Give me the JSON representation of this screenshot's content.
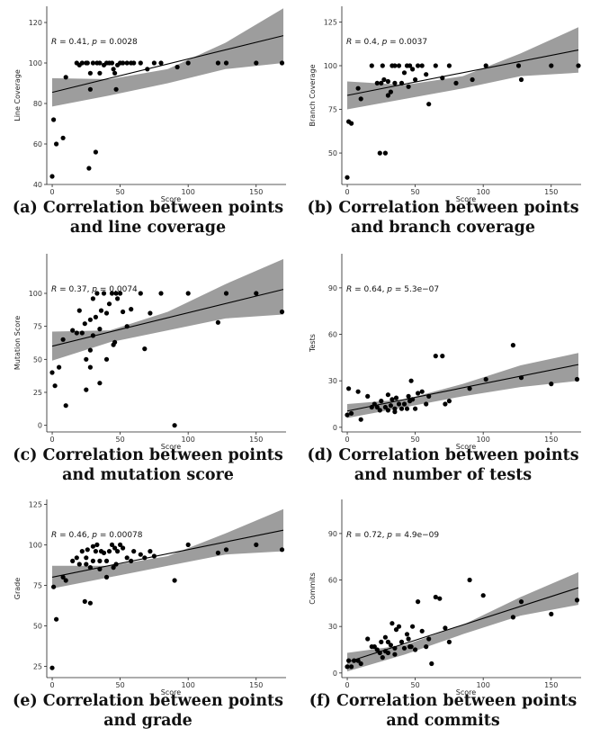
{
  "chart_data": [
    {
      "id": "a",
      "type": "scatter",
      "xlabel": "Score",
      "ylabel": "Line Coverage",
      "stat_r": "0.41",
      "stat_p": "0.0028",
      "x_ticks": [
        0,
        50,
        100,
        150
      ],
      "y_ticks": [
        40,
        60,
        80,
        100,
        120
      ],
      "xlim": [
        -4,
        172
      ],
      "ylim": [
        40,
        128
      ],
      "fit": {
        "x": [
          0,
          170
        ],
        "y": [
          85.5,
          113.5
        ]
      },
      "band_low": [
        78.5,
        84,
        90,
        97,
        100
      ],
      "band_high": [
        92.5,
        92,
        97,
        110,
        127
      ],
      "points": [
        [
          0,
          44
        ],
        [
          1,
          72
        ],
        [
          3,
          60
        ],
        [
          8,
          63
        ],
        [
          10,
          93
        ],
        [
          18,
          100
        ],
        [
          20,
          99
        ],
        [
          22,
          100
        ],
        [
          25,
          100
        ],
        [
          26,
          100
        ],
        [
          27,
          48
        ],
        [
          28,
          95
        ],
        [
          28,
          87
        ],
        [
          30,
          100
        ],
        [
          32,
          56
        ],
        [
          33,
          100
        ],
        [
          35,
          100
        ],
        [
          35,
          95
        ],
        [
          38,
          99
        ],
        [
          40,
          100
        ],
        [
          42,
          100
        ],
        [
          44,
          100
        ],
        [
          45,
          97
        ],
        [
          46,
          95
        ],
        [
          47,
          87
        ],
        [
          48,
          99
        ],
        [
          50,
          100
        ],
        [
          52,
          100
        ],
        [
          55,
          100
        ],
        [
          58,
          100
        ],
        [
          60,
          100
        ],
        [
          65,
          100
        ],
        [
          70,
          97
        ],
        [
          75,
          100
        ],
        [
          80,
          100
        ],
        [
          92,
          98
        ],
        [
          100,
          100
        ],
        [
          122,
          100
        ],
        [
          128,
          100
        ],
        [
          150,
          100
        ],
        [
          169,
          100
        ]
      ],
      "caption": [
        "(a) Correlation between points",
        "and line coverage"
      ]
    },
    {
      "id": "b",
      "type": "scatter",
      "xlabel": "Score",
      "ylabel": "Branch Coverage",
      "stat_r": "0.4",
      "stat_p": "0.0037",
      "x_ticks": [
        0,
        50,
        100,
        150
      ],
      "y_ticks": [
        50,
        75,
        100,
        125
      ],
      "xlim": [
        -4,
        172
      ],
      "ylim": [
        32,
        134
      ],
      "fit": {
        "x": [
          0,
          170
        ],
        "y": [
          83,
          109
        ]
      },
      "band_low": [
        75,
        81,
        87,
        94,
        96
      ],
      "band_high": [
        91,
        89,
        94,
        107,
        122
      ],
      "points": [
        [
          0,
          36
        ],
        [
          1,
          68
        ],
        [
          3,
          67
        ],
        [
          8,
          87
        ],
        [
          10,
          81
        ],
        [
          18,
          100
        ],
        [
          22,
          90
        ],
        [
          24,
          50
        ],
        [
          25,
          90
        ],
        [
          26,
          100
        ],
        [
          27,
          92
        ],
        [
          28,
          50
        ],
        [
          30,
          83
        ],
        [
          30,
          91
        ],
        [
          32,
          85
        ],
        [
          33,
          100
        ],
        [
          35,
          100
        ],
        [
          35,
          90
        ],
        [
          38,
          100
        ],
        [
          40,
          90
        ],
        [
          42,
          96
        ],
        [
          44,
          100
        ],
        [
          45,
          88
        ],
        [
          46,
          100
        ],
        [
          48,
          98
        ],
        [
          50,
          92
        ],
        [
          52,
          100
        ],
        [
          55,
          100
        ],
        [
          58,
          95
        ],
        [
          60,
          78
        ],
        [
          65,
          100
        ],
        [
          70,
          93
        ],
        [
          75,
          100
        ],
        [
          80,
          90
        ],
        [
          92,
          92
        ],
        [
          102,
          100
        ],
        [
          126,
          100
        ],
        [
          128,
          92
        ],
        [
          150,
          100
        ],
        [
          170,
          100
        ]
      ],
      "caption": [
        "(b) Correlation between points",
        "and branch coverage"
      ]
    },
    {
      "id": "c",
      "type": "scatter",
      "xlabel": "Score",
      "ylabel": "Mutation Score",
      "stat_r": "0.37",
      "stat_p": "0.0074",
      "x_ticks": [
        0,
        50,
        100,
        150
      ],
      "y_ticks": [
        0,
        25,
        50,
        75,
        100
      ],
      "xlim": [
        -4,
        172
      ],
      "ylim": [
        -5,
        130
      ],
      "fit": {
        "x": [
          0,
          170
        ],
        "y": [
          60,
          103
        ]
      },
      "band_low": [
        49,
        63,
        72,
        81,
        84
      ],
      "band_high": [
        71,
        72,
        86,
        107,
        126
      ],
      "points": [
        [
          0,
          40
        ],
        [
          2,
          30
        ],
        [
          5,
          44
        ],
        [
          8,
          65
        ],
        [
          10,
          15
        ],
        [
          15,
          72
        ],
        [
          18,
          70
        ],
        [
          20,
          87
        ],
        [
          22,
          70
        ],
        [
          24,
          77
        ],
        [
          25,
          50
        ],
        [
          25,
          27
        ],
        [
          28,
          44
        ],
        [
          28,
          80
        ],
        [
          28,
          57
        ],
        [
          30,
          68
        ],
        [
          30,
          96
        ],
        [
          32,
          82
        ],
        [
          33,
          100
        ],
        [
          35,
          73
        ],
        [
          35,
          32
        ],
        [
          36,
          87
        ],
        [
          38,
          100
        ],
        [
          40,
          50
        ],
        [
          40,
          85
        ],
        [
          42,
          92
        ],
        [
          44,
          100
        ],
        [
          45,
          61
        ],
        [
          46,
          63
        ],
        [
          47,
          100
        ],
        [
          48,
          96
        ],
        [
          50,
          100
        ],
        [
          52,
          86
        ],
        [
          55,
          75
        ],
        [
          58,
          88
        ],
        [
          65,
          100
        ],
        [
          68,
          58
        ],
        [
          72,
          85
        ],
        [
          80,
          100
        ],
        [
          90,
          0
        ],
        [
          100,
          100
        ],
        [
          122,
          78
        ],
        [
          128,
          100
        ],
        [
          150,
          100
        ],
        [
          169,
          86
        ]
      ],
      "caption": [
        "(c) Correlation between points",
        "and mutation score"
      ]
    },
    {
      "id": "d",
      "type": "scatter",
      "xlabel": "Score",
      "ylabel": "Tests",
      "stat_r": "0.64",
      "stat_p": "5.3e−07",
      "x_ticks": [
        0,
        50,
        100,
        150
      ],
      "y_ticks": [
        0,
        30,
        60,
        90
      ],
      "xlim": [
        -4,
        172
      ],
      "ylim": [
        -3,
        112
      ],
      "fit": {
        "x": [
          0,
          170
        ],
        "y": [
          10.5,
          40.5
        ]
      },
      "band_low": [
        6,
        13,
        20,
        26,
        30
      ],
      "band_high": [
        15,
        18,
        28,
        40,
        48
      ],
      "points": [
        [
          0,
          8
        ],
        [
          1,
          25
        ],
        [
          3,
          9
        ],
        [
          8,
          23
        ],
        [
          10,
          5
        ],
        [
          15,
          20
        ],
        [
          18,
          13
        ],
        [
          20,
          15
        ],
        [
          22,
          13
        ],
        [
          24,
          11
        ],
        [
          25,
          17
        ],
        [
          28,
          13
        ],
        [
          30,
          21
        ],
        [
          30,
          11
        ],
        [
          32,
          14
        ],
        [
          33,
          18
        ],
        [
          35,
          12
        ],
        [
          35,
          10
        ],
        [
          36,
          19
        ],
        [
          38,
          15
        ],
        [
          40,
          12
        ],
        [
          42,
          15
        ],
        [
          44,
          12
        ],
        [
          45,
          20
        ],
        [
          46,
          17
        ],
        [
          47,
          30
        ],
        [
          48,
          18
        ],
        [
          50,
          12
        ],
        [
          52,
          22
        ],
        [
          55,
          23
        ],
        [
          58,
          15
        ],
        [
          60,
          20
        ],
        [
          65,
          46
        ],
        [
          70,
          46
        ],
        [
          72,
          15
        ],
        [
          75,
          17
        ],
        [
          90,
          25
        ],
        [
          102,
          31
        ],
        [
          122,
          53
        ],
        [
          128,
          32
        ],
        [
          150,
          28
        ],
        [
          169,
          31
        ]
      ],
      "caption": [
        "(d) Correlation between points",
        "and number of tests"
      ]
    },
    {
      "id": "e",
      "type": "scatter",
      "xlabel": "Score",
      "ylabel": "Grade",
      "stat_r": "0.46",
      "stat_p": "0.00078",
      "x_ticks": [
        0,
        50,
        100,
        150
      ],
      "y_ticks": [
        25,
        50,
        75,
        100,
        125
      ],
      "xlim": [
        -4,
        172
      ],
      "ylim": [
        18,
        128
      ],
      "fit": {
        "x": [
          0,
          170
        ],
        "y": [
          80,
          109
        ]
      },
      "band_low": [
        73,
        80,
        87,
        94,
        96
      ],
      "band_high": [
        87,
        87,
        93,
        107,
        122
      ],
      "points": [
        [
          0,
          24
        ],
        [
          1,
          74
        ],
        [
          3,
          54
        ],
        [
          8,
          80
        ],
        [
          10,
          78
        ],
        [
          15,
          90
        ],
        [
          18,
          92
        ],
        [
          20,
          88
        ],
        [
          22,
          96
        ],
        [
          24,
          65
        ],
        [
          25,
          88
        ],
        [
          25,
          92
        ],
        [
          26,
          97
        ],
        [
          28,
          86
        ],
        [
          28,
          64
        ],
        [
          30,
          90
        ],
        [
          30,
          99
        ],
        [
          32,
          96
        ],
        [
          33,
          100
        ],
        [
          35,
          85
        ],
        [
          35,
          90
        ],
        [
          36,
          96
        ],
        [
          38,
          95
        ],
        [
          40,
          80
        ],
        [
          40,
          90
        ],
        [
          42,
          96
        ],
        [
          44,
          100
        ],
        [
          45,
          86
        ],
        [
          46,
          98
        ],
        [
          47,
          88
        ],
        [
          48,
          96
        ],
        [
          50,
          100
        ],
        [
          52,
          98
        ],
        [
          55,
          92
        ],
        [
          58,
          90
        ],
        [
          60,
          96
        ],
        [
          65,
          94
        ],
        [
          68,
          92
        ],
        [
          72,
          96
        ],
        [
          75,
          93
        ],
        [
          90,
          78
        ],
        [
          100,
          100
        ],
        [
          122,
          95
        ],
        [
          128,
          97
        ],
        [
          150,
          100
        ],
        [
          169,
          97
        ]
      ],
      "caption": [
        "(e) Correlation between points",
        "and grade"
      ]
    },
    {
      "id": "f",
      "type": "scatter",
      "xlabel": "Score",
      "ylabel": "Commits",
      "stat_r": "0.72",
      "stat_p": "4.9e−09",
      "x_ticks": [
        0,
        50,
        100,
        150
      ],
      "y_ticks": [
        0,
        30,
        60,
        90
      ],
      "xlim": [
        -4,
        172
      ],
      "ylim": [
        -3,
        112
      ],
      "fit": {
        "x": [
          0,
          170
        ],
        "y": [
          7,
          55
        ]
      },
      "band_low": [
        1,
        12,
        25,
        37,
        44
      ],
      "band_high": [
        13,
        18,
        31,
        49,
        65
      ],
      "points": [
        [
          0,
          4
        ],
        [
          1,
          8
        ],
        [
          3,
          4
        ],
        [
          5,
          8
        ],
        [
          8,
          8
        ],
        [
          10,
          6
        ],
        [
          15,
          22
        ],
        [
          18,
          17
        ],
        [
          20,
          17
        ],
        [
          22,
          15
        ],
        [
          24,
          13
        ],
        [
          25,
          20
        ],
        [
          26,
          10
        ],
        [
          28,
          14
        ],
        [
          28,
          23
        ],
        [
          30,
          13
        ],
        [
          30,
          20
        ],
        [
          32,
          18
        ],
        [
          33,
          32
        ],
        [
          35,
          12
        ],
        [
          35,
          16
        ],
        [
          36,
          28
        ],
        [
          38,
          30
        ],
        [
          40,
          20
        ],
        [
          42,
          16
        ],
        [
          44,
          25
        ],
        [
          45,
          22
        ],
        [
          46,
          17
        ],
        [
          47,
          17
        ],
        [
          48,
          30
        ],
        [
          50,
          15
        ],
        [
          52,
          46
        ],
        [
          55,
          27
        ],
        [
          58,
          17
        ],
        [
          60,
          22
        ],
        [
          62,
          6
        ],
        [
          65,
          49
        ],
        [
          68,
          48
        ],
        [
          72,
          29
        ],
        [
          75,
          20
        ],
        [
          90,
          60
        ],
        [
          100,
          50
        ],
        [
          122,
          36
        ],
        [
          128,
          46
        ],
        [
          150,
          38
        ],
        [
          169,
          47
        ]
      ],
      "caption": [
        "(f) Correlation between points",
        "and commits"
      ]
    }
  ]
}
